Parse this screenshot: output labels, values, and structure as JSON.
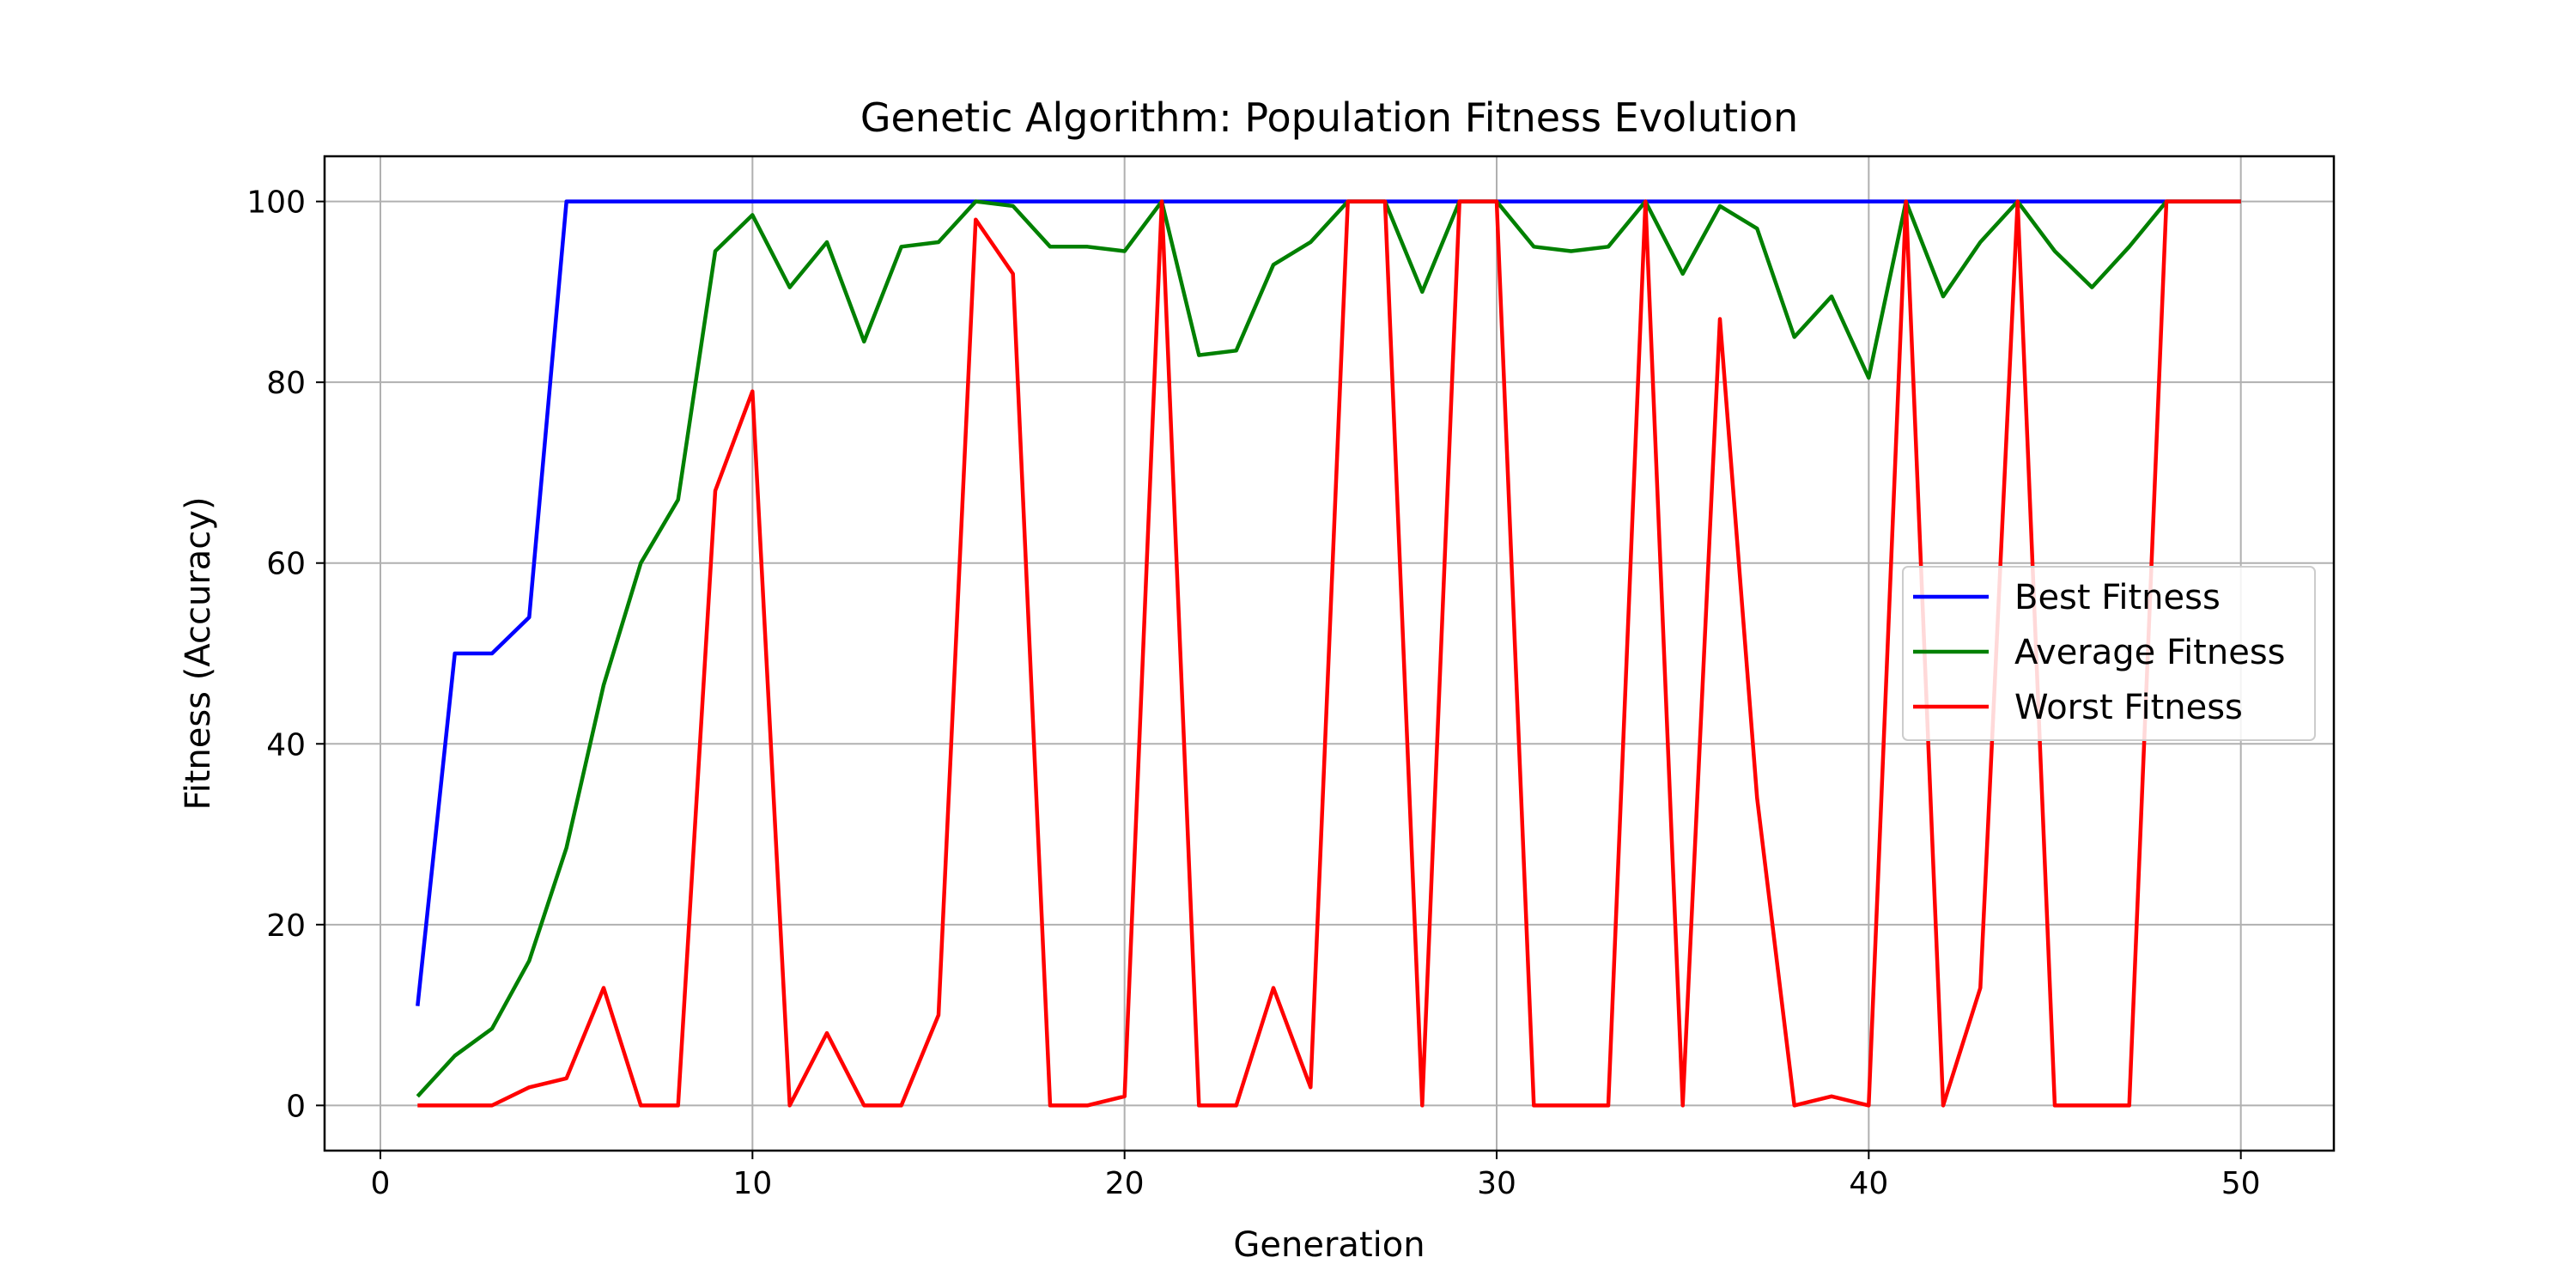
{
  "chart_data": {
    "type": "line",
    "title": "Genetic Algorithm: Population Fitness Evolution",
    "xlabel": "Generation",
    "ylabel": "Fitness (Accuracy)",
    "xlim": [
      -1.5,
      52.5
    ],
    "ylim": [
      -5,
      105
    ],
    "x_ticks": [
      0,
      10,
      20,
      30,
      40,
      50
    ],
    "y_ticks": [
      0,
      20,
      40,
      60,
      80,
      100
    ],
    "grid": true,
    "legend_position": "center-right",
    "x": [
      1,
      2,
      3,
      4,
      5,
      6,
      7,
      8,
      9,
      10,
      11,
      12,
      13,
      14,
      15,
      16,
      17,
      18,
      19,
      20,
      21,
      22,
      23,
      24,
      25,
      26,
      27,
      28,
      29,
      30,
      31,
      32,
      33,
      34,
      35,
      36,
      37,
      38,
      39,
      40,
      41,
      42,
      43,
      44,
      45,
      46,
      47,
      48,
      49,
      50
    ],
    "series": [
      {
        "name": "Best Fitness",
        "color": "#0000ff",
        "values": [
          11,
          50,
          50,
          54,
          100,
          100,
          100,
          100,
          100,
          100,
          100,
          100,
          100,
          100,
          100,
          100,
          100,
          100,
          100,
          100,
          100,
          100,
          100,
          100,
          100,
          100,
          100,
          100,
          100,
          100,
          100,
          100,
          100,
          100,
          100,
          100,
          100,
          100,
          100,
          100,
          100,
          100,
          100,
          100,
          100,
          100,
          100,
          100,
          100,
          100
        ]
      },
      {
        "name": "Average Fitness",
        "color": "#008000",
        "values": [
          1,
          5.5,
          8.5,
          16,
          28.5,
          46.5,
          60,
          67,
          94.5,
          98.5,
          90.5,
          95.5,
          84.5,
          95,
          95.5,
          100,
          99.5,
          95,
          95,
          94.5,
          100,
          83,
          83.5,
          93,
          95.5,
          100,
          100,
          90,
          100,
          100,
          95,
          94.5,
          95,
          100,
          92,
          99.5,
          97,
          85,
          89.5,
          80.5,
          100,
          89.5,
          95.5,
          100,
          94.5,
          90.5,
          95,
          100,
          100,
          100
        ]
      },
      {
        "name": "Worst Fitness",
        "color": "#ff0000",
        "values": [
          0,
          0,
          0,
          2,
          3,
          13,
          0,
          0,
          68,
          79,
          0,
          8,
          0,
          0,
          10,
          98,
          92,
          0,
          0,
          1,
          100,
          0,
          0,
          13,
          2,
          100,
          100,
          0,
          100,
          100,
          0,
          0,
          0,
          100,
          0,
          87,
          34,
          0,
          1,
          0,
          100,
          0,
          13,
          100,
          0,
          0,
          0,
          100,
          100,
          100
        ]
      }
    ]
  }
}
